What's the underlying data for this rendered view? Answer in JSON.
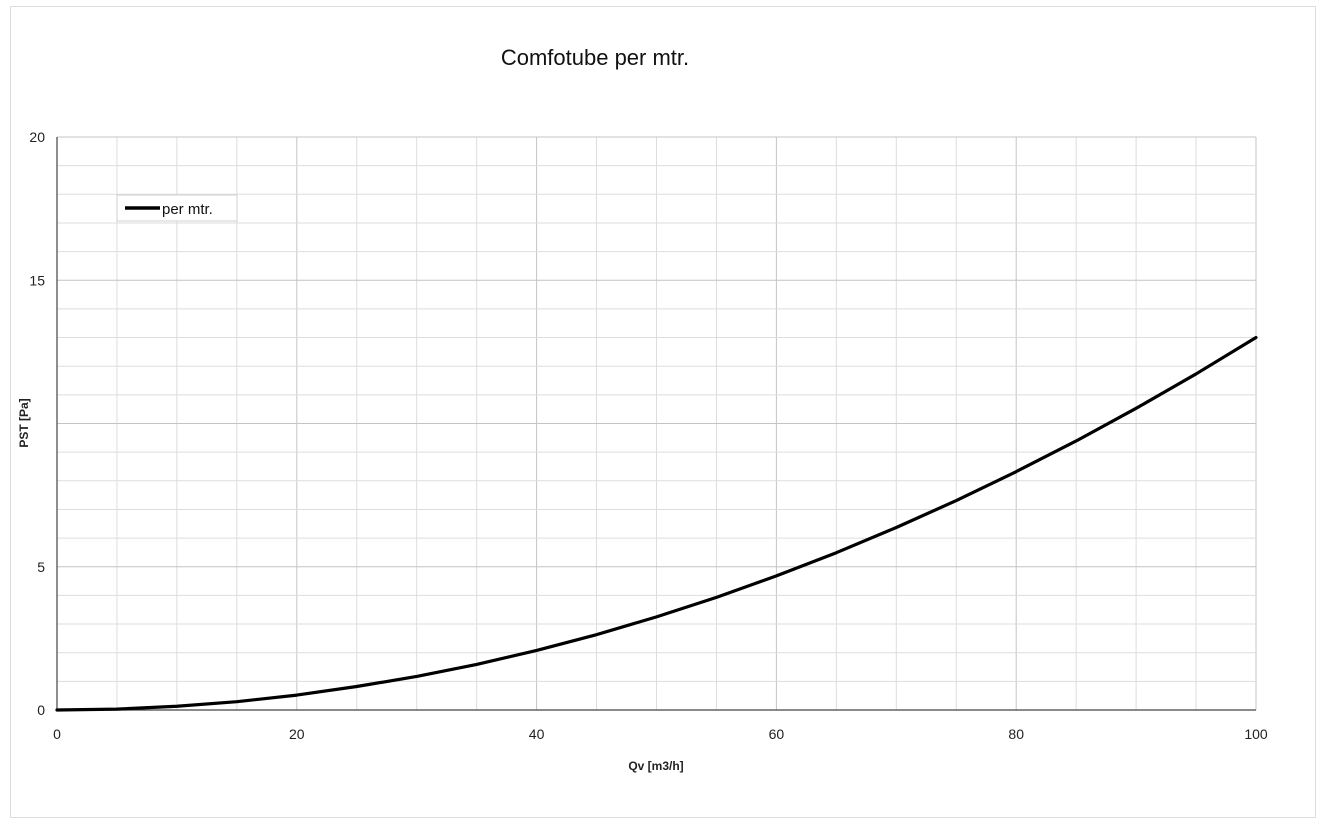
{
  "chart_data": {
    "type": "line",
    "title": "Comfotube per mtr.",
    "xlabel": "Qv [m3/h]",
    "ylabel": "PST [Pa]",
    "xlim": [
      0,
      100
    ],
    "ylim": [
      0,
      20
    ],
    "x_major_ticks": [
      0,
      20,
      40,
      60,
      80,
      100
    ],
    "y_major_ticks": [
      0,
      5,
      15,
      20
    ],
    "x_minor_step": 5,
    "y_minor_step": 1,
    "grid": true,
    "legend_position": "top-left",
    "series": [
      {
        "name": "per mtr.",
        "color": "#000000",
        "x": [
          0,
          5,
          10,
          15,
          20,
          25,
          30,
          35,
          40,
          45,
          50,
          55,
          60,
          65,
          70,
          75,
          80,
          85,
          90,
          95,
          100
        ],
        "y": [
          0,
          0.03,
          0.13,
          0.29,
          0.52,
          0.82,
          1.17,
          1.59,
          2.08,
          2.63,
          3.25,
          3.93,
          4.68,
          5.49,
          6.37,
          7.31,
          8.32,
          9.39,
          10.53,
          11.73,
          13.0
        ]
      }
    ]
  }
}
